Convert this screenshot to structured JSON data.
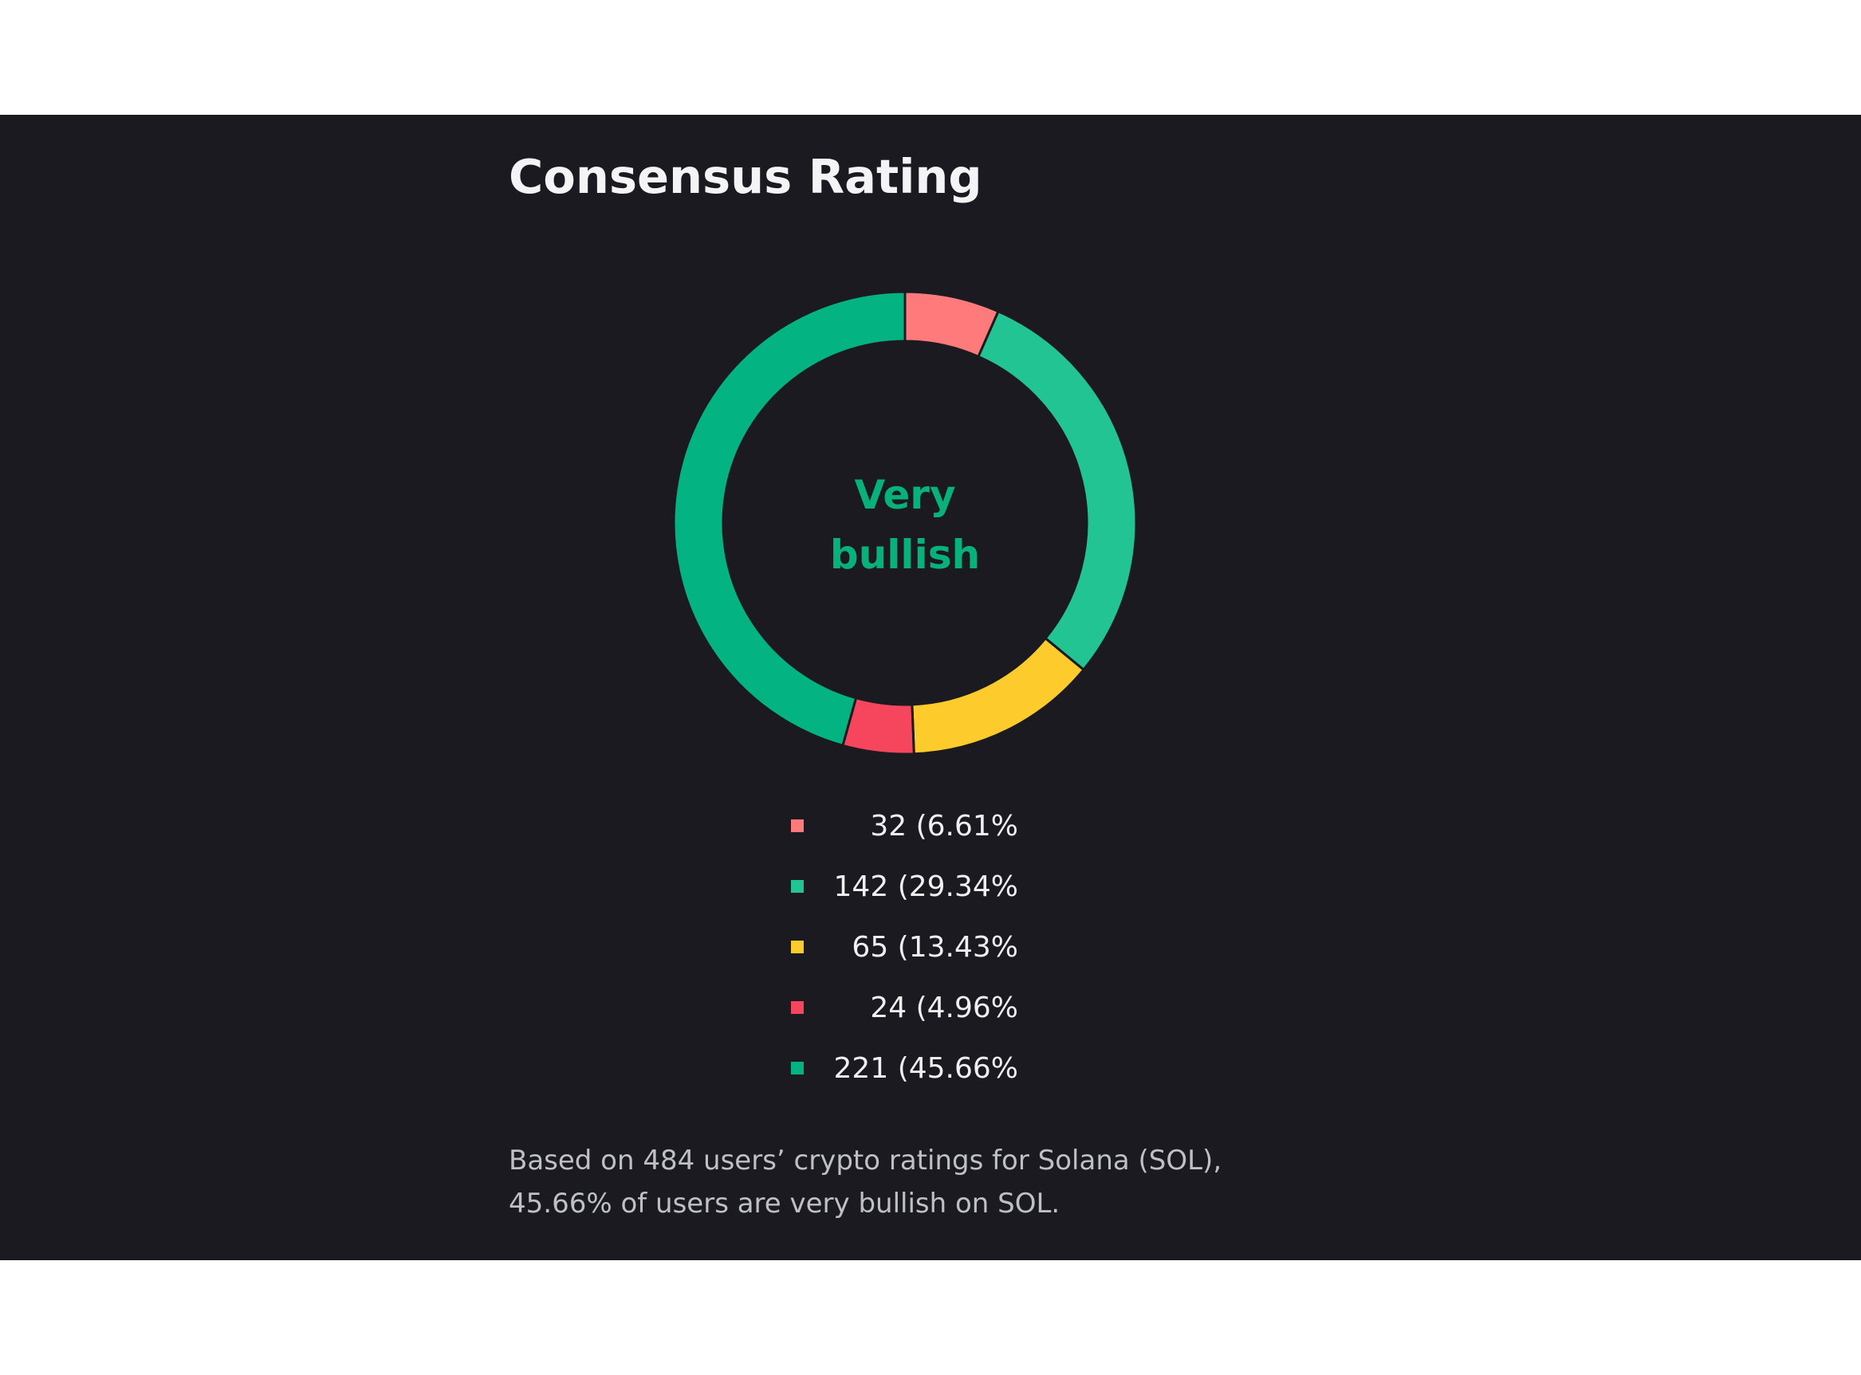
{
  "title": "Consensus Rating",
  "center_label": [
    "Very",
    "bullish"
  ],
  "colors": {
    "background": "#1b1a21",
    "accent_green": "#07b27a"
  },
  "chart_data": {
    "type": "pie",
    "variant": "donut",
    "title": "Consensus Rating",
    "slices": [
      {
        "value": 32,
        "percent": 6.61,
        "label": "32 (6.61%",
        "color": "#ff7b7b"
      },
      {
        "value": 142,
        "percent": 29.34,
        "label": "142 (29.34%",
        "color": "#22c494"
      },
      {
        "value": 65,
        "percent": 13.43,
        "label": "65 (13.43%",
        "color": "#fdcb2c"
      },
      {
        "value": 24,
        "percent": 4.96,
        "label": "24 (4.96%",
        "color": "#f6465d"
      },
      {
        "value": 221,
        "percent": 45.66,
        "label": "221 (45.66%",
        "color": "#03b381"
      }
    ],
    "total": 484
  },
  "footnote": [
    "Based on 484 users’ crypto ratings for Solana (SOL),",
    "45.66% of users are very bullish on SOL."
  ]
}
